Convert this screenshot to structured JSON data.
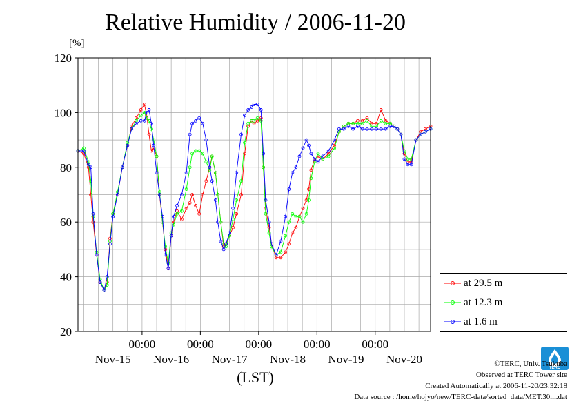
{
  "chart_data": {
    "type": "line",
    "title": "Relative Humidity / 2006-11-20",
    "ylabel": "[%]",
    "xlabel": "(LST)",
    "ylim": [
      20,
      120
    ],
    "yticks": [
      20,
      40,
      60,
      80,
      100,
      120
    ],
    "xlim": [
      -0.1,
      5.95
    ],
    "x_unit": "days since Nov-15 00:00",
    "time_ticks": [
      "00:00",
      "00:00",
      "00:00",
      "00:00",
      "00:00"
    ],
    "time_tick_positions": [
      1,
      2,
      3,
      4,
      5
    ],
    "date_labels": [
      "Nov-15",
      "Nov-16",
      "Nov-17",
      "Nov-18",
      "Nov-19",
      "Nov-20"
    ],
    "date_label_positions": [
      0.5,
      1.5,
      2.5,
      3.5,
      4.5,
      5.5
    ],
    "grid": true,
    "legend_position": "lower-right-outside",
    "series": [
      {
        "name": "at 29.5 m",
        "color": "#ff0000",
        "x": [
          -0.1,
          0.0,
          0.08,
          0.12,
          0.16,
          0.22,
          0.28,
          0.35,
          0.4,
          0.45,
          0.5,
          0.58,
          0.66,
          0.75,
          0.82,
          0.9,
          0.98,
          1.04,
          1.08,
          1.12,
          1.16,
          1.2,
          1.25,
          1.3,
          1.35,
          1.4,
          1.45,
          1.5,
          1.54,
          1.6,
          1.68,
          1.76,
          1.82,
          1.86,
          1.92,
          1.98,
          2.04,
          2.1,
          2.16,
          2.2,
          2.26,
          2.3,
          2.35,
          2.4,
          2.44,
          2.5,
          2.56,
          2.62,
          2.7,
          2.76,
          2.82,
          2.88,
          2.92,
          2.98,
          3.04,
          3.08,
          3.12,
          3.18,
          3.22,
          3.3,
          3.38,
          3.46,
          3.52,
          3.58,
          3.64,
          3.7,
          3.76,
          3.82,
          3.86,
          3.9,
          3.96,
          4.02,
          4.1,
          4.2,
          4.3,
          4.38,
          4.46,
          4.54,
          4.62,
          4.7,
          4.78,
          4.86,
          4.94,
          5.02,
          5.1,
          5.18,
          5.26,
          5.32,
          5.38,
          5.44,
          5.5,
          5.56,
          5.62,
          5.7,
          5.78,
          5.86,
          5.95
        ],
        "values": [
          86,
          85,
          80,
          70,
          60,
          48,
          38,
          35,
          38,
          54,
          63,
          70,
          80,
          88,
          95,
          98,
          101,
          103,
          99,
          92,
          86,
          87,
          84,
          70,
          60,
          50,
          43,
          55,
          60,
          64,
          61,
          65,
          67,
          70,
          66,
          63,
          70,
          75,
          80,
          84,
          78,
          70,
          60,
          51,
          52,
          55,
          58,
          63,
          70,
          85,
          95,
          97,
          96,
          97,
          98,
          80,
          65,
          58,
          52,
          47,
          47,
          49,
          52,
          56,
          58,
          62,
          65,
          68,
          72,
          79,
          83,
          84,
          83,
          85,
          88,
          93,
          95,
          96,
          96,
          97,
          97,
          98,
          96,
          96,
          101,
          97,
          96,
          95,
          94,
          92,
          85,
          82,
          82,
          90,
          93,
          94,
          95
        ]
      },
      {
        "name": "at 12.3 m",
        "color": "#00ff00",
        "x": [
          -0.1,
          0.0,
          0.08,
          0.12,
          0.16,
          0.22,
          0.28,
          0.35,
          0.4,
          0.45,
          0.5,
          0.58,
          0.66,
          0.75,
          0.82,
          0.9,
          0.98,
          1.04,
          1.08,
          1.12,
          1.16,
          1.2,
          1.25,
          1.3,
          1.35,
          1.4,
          1.45,
          1.5,
          1.54,
          1.6,
          1.68,
          1.76,
          1.82,
          1.86,
          1.92,
          1.98,
          2.04,
          2.1,
          2.16,
          2.2,
          2.26,
          2.3,
          2.35,
          2.4,
          2.44,
          2.5,
          2.56,
          2.62,
          2.7,
          2.76,
          2.82,
          2.88,
          2.92,
          2.98,
          3.04,
          3.08,
          3.12,
          3.18,
          3.22,
          3.3,
          3.38,
          3.46,
          3.52,
          3.58,
          3.64,
          3.7,
          3.76,
          3.82,
          3.86,
          3.9,
          3.96,
          4.02,
          4.1,
          4.2,
          4.3,
          4.38,
          4.46,
          4.54,
          4.62,
          4.7,
          4.78,
          4.86,
          4.94,
          5.02,
          5.1,
          5.18,
          5.26,
          5.32,
          5.38,
          5.44,
          5.5,
          5.56,
          5.62,
          5.7,
          5.78,
          5.86,
          5.95
        ],
        "values": [
          86,
          87,
          82,
          75,
          62,
          49,
          39,
          35,
          37,
          53,
          63,
          71,
          80,
          89,
          94,
          97,
          99,
          100,
          98,
          97,
          94,
          90,
          84,
          71,
          60,
          51,
          45,
          56,
          59,
          63,
          64,
          72,
          80,
          85,
          86,
          86,
          85,
          82,
          79,
          84,
          78,
          70,
          60,
          52,
          51,
          55,
          61,
          68,
          75,
          89,
          96,
          97,
          97,
          98,
          97,
          80,
          63,
          56,
          51,
          48,
          49,
          55,
          60,
          63,
          62,
          62,
          60,
          63,
          68,
          76,
          82,
          85,
          83,
          84,
          87,
          93,
          95,
          96,
          96,
          96,
          96,
          97,
          95,
          95,
          97,
          96,
          96,
          95,
          94,
          92,
          86,
          83,
          83,
          90,
          92,
          93,
          94
        ]
      },
      {
        "name": "at 1.6 m",
        "color": "#0000ff",
        "x": [
          -0.1,
          0.0,
          0.08,
          0.12,
          0.16,
          0.22,
          0.28,
          0.35,
          0.4,
          0.45,
          0.5,
          0.58,
          0.66,
          0.75,
          0.82,
          0.9,
          0.98,
          1.04,
          1.08,
          1.12,
          1.16,
          1.2,
          1.25,
          1.3,
          1.35,
          1.4,
          1.45,
          1.5,
          1.54,
          1.6,
          1.68,
          1.76,
          1.82,
          1.86,
          1.92,
          1.98,
          2.04,
          2.1,
          2.16,
          2.2,
          2.26,
          2.3,
          2.35,
          2.4,
          2.44,
          2.5,
          2.56,
          2.62,
          2.7,
          2.76,
          2.82,
          2.88,
          2.92,
          2.98,
          3.04,
          3.08,
          3.12,
          3.18,
          3.22,
          3.3,
          3.38,
          3.46,
          3.52,
          3.58,
          3.64,
          3.7,
          3.76,
          3.82,
          3.86,
          3.9,
          3.96,
          4.02,
          4.1,
          4.2,
          4.3,
          4.38,
          4.46,
          4.54,
          4.62,
          4.7,
          4.78,
          4.86,
          4.94,
          5.02,
          5.1,
          5.18,
          5.26,
          5.32,
          5.38,
          5.44,
          5.5,
          5.56,
          5.62,
          5.7,
          5.78,
          5.86,
          5.95
        ],
        "values": [
          86,
          86,
          81,
          80,
          63,
          48,
          38,
          35,
          40,
          52,
          62,
          70,
          80,
          88,
          94,
          96,
          97,
          97,
          100,
          101,
          96,
          88,
          78,
          70,
          62,
          48,
          43,
          55,
          62,
          66,
          70,
          78,
          92,
          96,
          97,
          98,
          96,
          90,
          80,
          75,
          68,
          60,
          53,
          50,
          52,
          56,
          65,
          78,
          92,
          99,
          101,
          102,
          103,
          103,
          101,
          85,
          68,
          60,
          52,
          48,
          53,
          62,
          72,
          78,
          80,
          84,
          87,
          90,
          88,
          85,
          83,
          82,
          84,
          86,
          90,
          94,
          94,
          95,
          94,
          95,
          94,
          94,
          94,
          94,
          94,
          94,
          95,
          95,
          94,
          92,
          83,
          81,
          81,
          90,
          92,
          93,
          94
        ]
      }
    ]
  },
  "credits": {
    "copyright": "©TERC, Univ. Tsukuba",
    "site": "Observed at TERC Tower site",
    "created": "Created Automatically at 2006-11-20/23:32:18",
    "source": "Data source : /home/hojyo/new/TERC-data/sorted_data/MET.30m.dat"
  },
  "logo": {
    "name": "terc-logo",
    "text": "TERC",
    "color": "#1a8fd6"
  }
}
